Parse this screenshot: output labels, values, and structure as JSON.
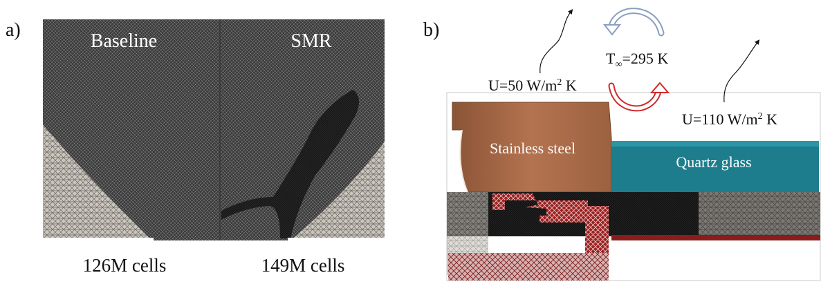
{
  "panel_a": {
    "label": "a)",
    "left_title": "Baseline",
    "right_title": "SMR",
    "left_caption": "126M cells",
    "right_caption": "149M cells"
  },
  "panel_b": {
    "label": "b)",
    "u_left": "U=50 W/m² K",
    "t_inf": "T∞=295 K",
    "u_right": "U=110 W/m² K",
    "steel_label": "Stainless steel",
    "glass_label": "Quartz glass"
  },
  "colors": {
    "mesh_dark": "#3c3c3c",
    "mesh_light": "#cfcac2",
    "steel": "#b47350",
    "glass": "#1d7d8c",
    "red_region": "#9a2020",
    "arrow_blue": "#8a9ec0",
    "arrow_red": "#d02828"
  }
}
